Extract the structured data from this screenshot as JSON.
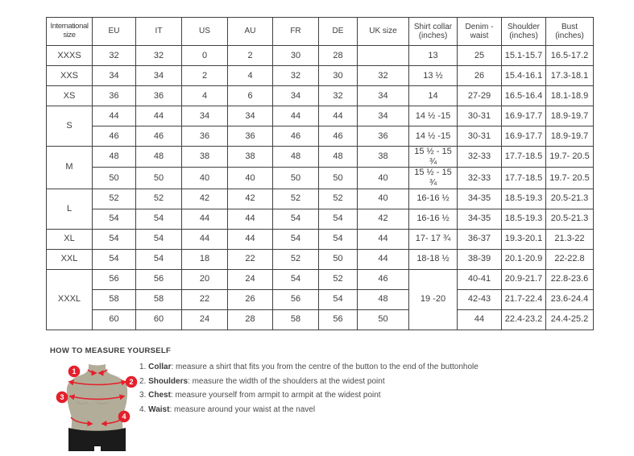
{
  "colors": {
    "accent_red": "#e4202c",
    "mannequin": "#b2ad99",
    "shorts": "#1b1b1b",
    "table_border": "#414141",
    "text": "#3d3d3d"
  },
  "table": {
    "headers": [
      "International size",
      "EU",
      "IT",
      "US",
      "AU",
      "FR",
      "DE",
      "UK size",
      "Shirt collar (inches)",
      "Denim - waist",
      "Shoulder (inches)",
      "Bust (inches)"
    ],
    "rows": [
      [
        "XXXS",
        "32",
        "32",
        "0",
        "2",
        "30",
        "28",
        "",
        "13",
        "25",
        "15.1-15.7",
        "16.5-17.2"
      ],
      [
        "XXS",
        "34",
        "34",
        "2",
        "4",
        "32",
        "30",
        "32",
        "13 ½",
        "26",
        "15.4-16.1",
        "17.3-18.1"
      ],
      [
        "XS",
        "36",
        "36",
        "4",
        "6",
        "34",
        "32",
        "34",
        "14",
        "27-29",
        "16.5-16.4",
        "18.1-18.9"
      ],
      [
        {
          "text": "S",
          "rowspan": 2
        },
        "44",
        "44",
        "34",
        "34",
        "44",
        "44",
        "34",
        "14 ½ -15",
        "30-31",
        "16.9-17.7",
        "18.9-19.7"
      ],
      [
        null,
        "46",
        "46",
        "36",
        "36",
        "46",
        "46",
        "36",
        "14 ½ -15",
        "30-31",
        "16.9-17.7",
        "18.9-19.7"
      ],
      [
        {
          "text": "M",
          "rowspan": 2
        },
        "48",
        "48",
        "38",
        "38",
        "48",
        "48",
        "38",
        "15 ½ - 15 ¾",
        "32-33",
        "17.7-18.5",
        "19.7- 20.5"
      ],
      [
        null,
        "50",
        "50",
        "40",
        "40",
        "50",
        "50",
        "40",
        "15 ½ - 15 ¾",
        "32-33",
        "17.7-18.5",
        "19.7- 20.5"
      ],
      [
        {
          "text": "L",
          "rowspan": 2
        },
        "52",
        "52",
        "42",
        "42",
        "52",
        "52",
        "40",
        "16-16 ½",
        "34-35",
        "18.5-19.3",
        "20.5-21.3"
      ],
      [
        null,
        "54",
        "54",
        "44",
        "44",
        "54",
        "54",
        "42",
        "16-16 ½",
        "34-35",
        "18.5-19.3",
        "20.5-21.3"
      ],
      [
        "XL",
        "54",
        "54",
        "44",
        "44",
        "54",
        "54",
        "44",
        "17- 17 ¾",
        "36-37",
        "19.3-20.1",
        "21.3-22"
      ],
      [
        "XXL",
        "54",
        "54",
        "18",
        "22",
        "52",
        "50",
        "44",
        "18-18 ½",
        "38-39",
        "20.1-20.9",
        "22-22.8"
      ],
      [
        {
          "text": "XXXL",
          "rowspan": 3
        },
        "56",
        "56",
        "20",
        "24",
        "54",
        "52",
        "46",
        {
          "text": "19 -20",
          "rowspan": 3
        },
        "40-41",
        "20.9-21.7",
        "22.8-23.6"
      ],
      [
        null,
        "58",
        "58",
        "22",
        "26",
        "56",
        "54",
        "48",
        null,
        "42-43",
        "21.7-22.4",
        "23.6-24.4"
      ],
      [
        null,
        "60",
        "60",
        "24",
        "28",
        "58",
        "56",
        "50",
        null,
        "44",
        "22.4-23.2",
        "24.4-25.2"
      ]
    ]
  },
  "measure": {
    "heading": "HOW TO MEASURE YOURSELF",
    "items": [
      {
        "num": "1.",
        "term": "Collar",
        "text": ": measure a shirt that fits you from the centre of the button to the end of the buttonhole"
      },
      {
        "num": "2.",
        "term": "Shoulders",
        "text": ": measure the width of the shoulders at the widest point"
      },
      {
        "num": "3.",
        "term": "Chest",
        "text": ": measure yourself from armpit to armpit at the widest point"
      },
      {
        "num": "4.",
        "term": "Waist",
        "text": ": measure around your waist at the navel"
      }
    ],
    "badges": [
      "1",
      "2",
      "3",
      "4"
    ]
  }
}
